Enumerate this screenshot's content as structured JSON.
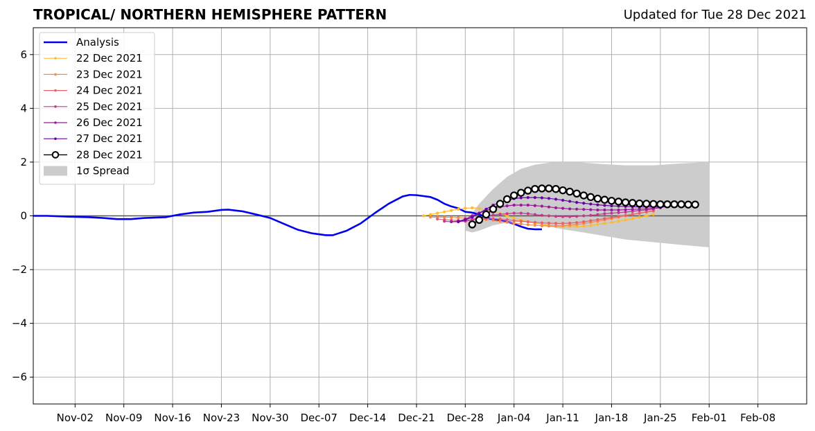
{
  "chart_data": {
    "type": "line",
    "title": "TROPICAL/ NORTHERN HEMISPHERE PATTERN",
    "subtitle": "Updated for Tue 28 Dec 2021",
    "xlabel": "",
    "ylabel": "",
    "ylim": [
      -7,
      7
    ],
    "xlim": [
      "2021-10-27",
      "2022-02-15"
    ],
    "y_ticks": [
      "−6",
      "−4",
      "−2",
      "0",
      "2",
      "4",
      "6"
    ],
    "y_tick_values": [
      -6,
      -4,
      -2,
      0,
      2,
      4,
      6
    ],
    "x_ticks": [
      "Nov-02",
      "Nov-09",
      "Nov-16",
      "Nov-23",
      "Nov-30",
      "Dec-07",
      "Dec-14",
      "Dec-21",
      "Dec-28",
      "Jan-04",
      "Jan-11",
      "Jan-18",
      "Jan-25",
      "Feb-01",
      "Feb-08"
    ],
    "x_tick_dates": [
      "2021-11-02",
      "2021-11-09",
      "2021-11-16",
      "2021-11-23",
      "2021-11-30",
      "2021-12-07",
      "2021-12-14",
      "2021-12-21",
      "2021-12-28",
      "2022-01-04",
      "2022-01-11",
      "2022-01-18",
      "2022-01-25",
      "2022-02-01",
      "2022-02-08"
    ],
    "grid": true,
    "legend_position": "top-left",
    "zero_line": 0,
    "analysis": {
      "name": "Analysis",
      "color": "#0000ee",
      "points": [
        [
          "2021-10-27",
          0.0
        ],
        [
          "2021-10-29",
          0.0
        ],
        [
          "2021-11-01",
          -0.03
        ],
        [
          "2021-11-04",
          -0.05
        ],
        [
          "2021-11-06",
          -0.08
        ],
        [
          "2021-11-08",
          -0.12
        ],
        [
          "2021-11-10",
          -0.12
        ],
        [
          "2021-11-12",
          -0.08
        ],
        [
          "2021-11-15",
          -0.05
        ],
        [
          "2021-11-17",
          0.05
        ],
        [
          "2021-11-19",
          0.12
        ],
        [
          "2021-11-21",
          0.15
        ],
        [
          "2021-11-23",
          0.22
        ],
        [
          "2021-11-24",
          0.23
        ],
        [
          "2021-11-26",
          0.17
        ],
        [
          "2021-11-28",
          0.05
        ],
        [
          "2021-11-30",
          -0.08
        ],
        [
          "2021-12-02",
          -0.3
        ],
        [
          "2021-12-04",
          -0.52
        ],
        [
          "2021-12-06",
          -0.65
        ],
        [
          "2021-12-08",
          -0.72
        ],
        [
          "2021-12-09",
          -0.72
        ],
        [
          "2021-12-11",
          -0.55
        ],
        [
          "2021-12-13",
          -0.28
        ],
        [
          "2021-12-15",
          0.1
        ],
        [
          "2021-12-17",
          0.45
        ],
        [
          "2021-12-19",
          0.72
        ],
        [
          "2021-12-20",
          0.78
        ],
        [
          "2021-12-21",
          0.77
        ],
        [
          "2021-12-23",
          0.7
        ],
        [
          "2021-12-24",
          0.6
        ],
        [
          "2021-12-25",
          0.45
        ],
        [
          "2021-12-26",
          0.35
        ],
        [
          "2021-12-27",
          0.28
        ],
        [
          "2021-12-28",
          0.15
        ],
        [
          "2021-12-29",
          0.12
        ],
        [
          "2021-12-30",
          0.05
        ],
        [
          "2021-12-31",
          -0.05
        ],
        [
          "2022-01-01",
          -0.15
        ],
        [
          "2022-01-02",
          -0.18
        ],
        [
          "2022-01-03",
          -0.22
        ],
        [
          "2022-01-04",
          -0.3
        ],
        [
          "2022-01-05",
          -0.4
        ],
        [
          "2022-01-06",
          -0.48
        ],
        [
          "2022-01-07",
          -0.5
        ],
        [
          "2022-01-08",
          -0.5
        ]
      ]
    },
    "spread": {
      "name": "1σ Spread",
      "color": "#cccccc",
      "x": [
        "2021-12-28",
        "2021-12-29",
        "2021-12-30",
        "2022-01-01",
        "2022-01-03",
        "2022-01-05",
        "2022-01-07",
        "2022-01-09",
        "2022-01-11",
        "2022-01-14",
        "2022-01-17",
        "2022-01-20",
        "2022-01-24",
        "2022-01-28",
        "2022-02-01"
      ],
      "upper": [
        -0.15,
        0.1,
        0.45,
        1.0,
        1.45,
        1.75,
        1.9,
        1.98,
        2.0,
        1.98,
        1.92,
        1.88,
        1.88,
        1.95,
        2.0
      ],
      "lower": [
        -0.55,
        -0.62,
        -0.55,
        -0.35,
        -0.25,
        -0.22,
        -0.28,
        -0.4,
        -0.5,
        -0.62,
        -0.75,
        -0.88,
        -0.98,
        -1.08,
        -1.17
      ]
    },
    "series": [
      {
        "name": "22 Dec 2021",
        "color": "#fdbb2d",
        "start": "2021-12-22",
        "values": [
          0.0,
          0.05,
          0.1,
          0.15,
          0.2,
          0.25,
          0.28,
          0.3,
          0.28,
          0.22,
          0.15,
          0.08,
          0.0,
          -0.08,
          -0.15,
          -0.22,
          -0.28,
          -0.32,
          -0.36,
          -0.38,
          -0.4,
          -0.4,
          -0.4,
          -0.38,
          -0.36,
          -0.32,
          -0.28,
          -0.24,
          -0.2,
          -0.15,
          -0.1,
          -0.05,
          0.0,
          0.05
        ]
      },
      {
        "name": "23 Dec 2021",
        "color": "#f5894b",
        "start": "2021-12-23",
        "values": [
          -0.05,
          -0.05,
          -0.05,
          -0.06,
          -0.07,
          -0.08,
          -0.1,
          -0.12,
          -0.14,
          -0.16,
          -0.2,
          -0.24,
          -0.28,
          -0.3,
          -0.33,
          -0.35,
          -0.37,
          -0.38,
          -0.38,
          -0.37,
          -0.35,
          -0.32,
          -0.28,
          -0.24,
          -0.2,
          -0.15,
          -0.1,
          -0.05,
          0.0,
          0.05,
          0.1,
          0.15,
          0.2
        ]
      },
      {
        "name": "24 Dec 2021",
        "color": "#e8606c",
        "start": "2021-12-24",
        "values": [
          -0.12,
          -0.14,
          -0.16,
          -0.17,
          -0.17,
          -0.15,
          -0.12,
          -0.1,
          -0.1,
          -0.12,
          -0.14,
          -0.18,
          -0.2,
          -0.22,
          -0.24,
          -0.26,
          -0.27,
          -0.28,
          -0.28,
          -0.27,
          -0.25,
          -0.22,
          -0.18,
          -0.14,
          -0.1,
          -0.06,
          -0.02,
          0.02,
          0.06,
          0.1,
          0.14,
          0.18
        ]
      },
      {
        "name": "25 Dec 2021",
        "color": "#c2388c",
        "start": "2021-12-25",
        "values": [
          -0.2,
          -0.22,
          -0.22,
          -0.2,
          -0.15,
          -0.08,
          -0.02,
          0.03,
          0.06,
          0.08,
          0.1,
          0.1,
          0.08,
          0.05,
          0.02,
          0.0,
          -0.02,
          -0.03,
          -0.03,
          -0.02,
          0.0,
          0.02,
          0.05,
          0.08,
          0.1,
          0.12,
          0.14,
          0.17,
          0.2,
          0.22,
          0.25
        ]
      },
      {
        "name": "26 Dec 2021",
        "color": "#9c179e",
        "start": "2021-12-26",
        "values": [
          -0.22,
          -0.2,
          -0.12,
          0.0,
          0.1,
          0.2,
          0.28,
          0.33,
          0.37,
          0.4,
          0.4,
          0.4,
          0.38,
          0.36,
          0.33,
          0.3,
          0.28,
          0.26,
          0.25,
          0.24,
          0.23,
          0.22,
          0.22,
          0.22,
          0.22,
          0.23,
          0.24,
          0.25,
          0.26,
          0.28,
          0.3
        ]
      },
      {
        "name": "27 Dec 2021",
        "color": "#6a00a8",
        "start": "2021-12-27",
        "values": [
          -0.22,
          -0.15,
          -0.05,
          0.1,
          0.25,
          0.4,
          0.5,
          0.58,
          0.64,
          0.67,
          0.68,
          0.68,
          0.67,
          0.65,
          0.62,
          0.58,
          0.54,
          0.5,
          0.47,
          0.44,
          0.41,
          0.39,
          0.37,
          0.36,
          0.35,
          0.34,
          0.33,
          0.33,
          0.33,
          0.33,
          0.34
        ]
      },
      {
        "name": "28 Dec 2021",
        "color": "#000000",
        "start": "2021-12-29",
        "values": [
          -0.32,
          -0.15,
          0.05,
          0.25,
          0.45,
          0.62,
          0.76,
          0.86,
          0.94,
          1.0,
          1.02,
          1.02,
          1.0,
          0.95,
          0.9,
          0.83,
          0.76,
          0.7,
          0.64,
          0.6,
          0.56,
          0.53,
          0.5,
          0.48,
          0.46,
          0.45,
          0.44,
          0.43,
          0.43,
          0.43,
          0.43,
          0.42,
          0.42
        ]
      }
    ],
    "legend": [
      "Analysis",
      "22 Dec 2021",
      "23 Dec 2021",
      "24 Dec 2021",
      "25 Dec 2021",
      "26 Dec 2021",
      "27 Dec 2021",
      "28 Dec 2021",
      "1σ Spread"
    ]
  }
}
